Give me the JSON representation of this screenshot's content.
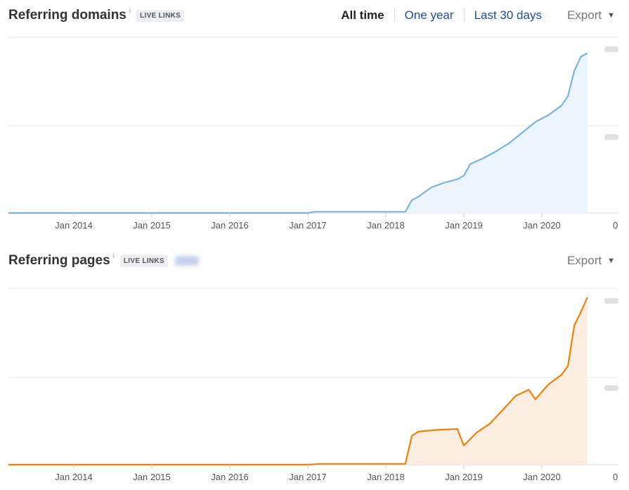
{
  "charts_header": {
    "domains": {
      "title": "Referring domains",
      "info": "i",
      "badge": "LIVE LINKS",
      "range_all": "All time",
      "range_year": "One year",
      "range_30": "Last 30 days",
      "export": "Export",
      "caret": "▼"
    },
    "pages": {
      "title": "Referring pages",
      "info": "i",
      "badge": "LIVE LINKS",
      "export": "Export",
      "caret": "▼"
    }
  },
  "colors": {
    "domains_line": "#7ab3e0",
    "domains_fill": "#edf5fc",
    "pages_line": "#f07f0c",
    "pages_fill": "#fdeee2",
    "gridline": "#e6e6e6"
  },
  "chart_data": [
    {
      "type": "area",
      "title": "Referring domains",
      "x_tick_labels": [
        "Jan 2014",
        "Jan 2015",
        "Jan 2016",
        "Jan 2017",
        "Jan 2018",
        "Jan 2019",
        "Jan 2020"
      ],
      "y_tick_labels": [
        "0"
      ],
      "grid": true,
      "series": [
        {
          "x": [
            "2013-03",
            "2017-01",
            "2017-02",
            "2018-04",
            "2018-05",
            "2018-06",
            "2018-08",
            "2018-10",
            "2018-12",
            "2019-01",
            "2019-02",
            "2019-04",
            "2019-06",
            "2019-08",
            "2019-10",
            "2019-12",
            "2020-02",
            "2020-04",
            "2020-05",
            "2020-06",
            "2020-07",
            "2020-08"
          ],
          "values": [
            0,
            0,
            0.01,
            0.01,
            0.11,
            0.14,
            0.22,
            0.26,
            0.29,
            0.32,
            0.42,
            0.47,
            0.53,
            0.6,
            0.69,
            0.78,
            0.84,
            0.92,
            1.0,
            1.22,
            1.34,
            1.37
          ]
        }
      ]
    },
    {
      "type": "area",
      "title": "Referring pages",
      "x_tick_labels": [
        "Jan 2014",
        "Jan 2015",
        "Jan 2016",
        "Jan 2017",
        "Jan 2018",
        "Jan 2019",
        "Jan 2020"
      ],
      "y_tick_labels": [
        "0"
      ],
      "grid": true,
      "series": [
        {
          "x": [
            "2013-03",
            "2017-01",
            "2017-03",
            "2017-06",
            "2018-04",
            "2018-05",
            "2018-06",
            "2018-09",
            "2018-12",
            "2019-01",
            "2019-03",
            "2019-05",
            "2019-07",
            "2019-09",
            "2019-11",
            "2019-12",
            "2020-02",
            "2020-04",
            "2020-05",
            "2020-06",
            "2020-07",
            "2020-08"
          ],
          "values": [
            0,
            0,
            0.01,
            0.01,
            0.01,
            0.33,
            0.38,
            0.4,
            0.41,
            0.22,
            0.37,
            0.47,
            0.63,
            0.79,
            0.86,
            0.75,
            0.92,
            1.03,
            1.13,
            1.6,
            1.75,
            1.92
          ]
        }
      ]
    }
  ]
}
